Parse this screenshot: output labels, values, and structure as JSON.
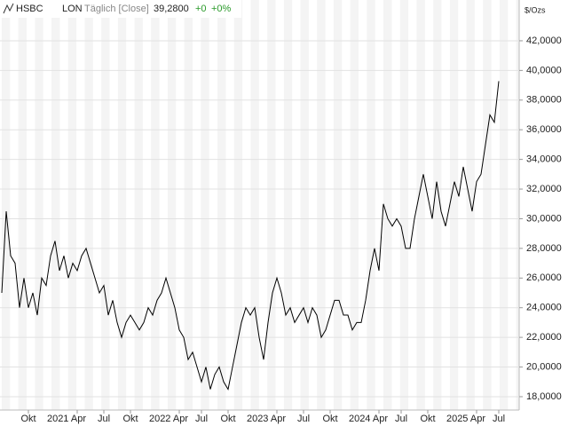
{
  "chart_data": {
    "type": "line",
    "symbol": "HSBC",
    "exchange": "LON",
    "interval": "Täglich [Close]",
    "last": "39,2800",
    "change": "+0",
    "change_pct": "+0%",
    "unit_label": "$/Ozs",
    "categories": [
      null,
      null,
      null,
      null,
      null,
      null,
      "Okt",
      null,
      null,
      null,
      null,
      null,
      null,
      null,
      null,
      null,
      null,
      "2021 Apr",
      null,
      null,
      null,
      null,
      null,
      "Jul",
      null,
      null,
      null,
      null,
      null,
      "Okt",
      null,
      null,
      null,
      null,
      null,
      null,
      null,
      null,
      null,
      null,
      "2022 Apr",
      null,
      null,
      null,
      null,
      "Jul",
      null,
      null,
      null,
      null,
      null,
      "Okt",
      null,
      null,
      null,
      null,
      null,
      null,
      null,
      null,
      null,
      null,
      "2023 Apr",
      null,
      null,
      null,
      null,
      null,
      "Jul",
      null,
      null,
      null,
      null,
      null,
      "Okt",
      null,
      null,
      null,
      null,
      null,
      null,
      null,
      null,
      null,
      null,
      "2024 Apr",
      null,
      null,
      null,
      null,
      "Jul",
      null,
      null,
      null,
      null,
      null,
      "Okt",
      null,
      null,
      null,
      null,
      null,
      null,
      null,
      null,
      null,
      null,
      "2025 Apr",
      null,
      null,
      null,
      null,
      "Jul"
    ],
    "values": [
      25,
      30.5,
      27.5,
      27,
      24,
      26,
      24,
      25,
      23.5,
      26,
      25.5,
      27.5,
      28.5,
      26.5,
      27.5,
      26,
      27,
      26.5,
      27.5,
      28,
      27,
      26,
      25,
      25.5,
      23.5,
      24.5,
      23,
      22,
      23,
      23.5,
      23,
      22.5,
      23,
      24,
      23.5,
      24.5,
      25,
      26,
      25,
      24,
      22.5,
      22,
      20.5,
      21,
      20,
      19,
      20,
      18.5,
      19.5,
      20,
      19,
      18.5,
      20,
      21.5,
      23,
      24,
      23.5,
      24,
      22,
      20.5,
      23,
      25,
      26,
      25,
      23.5,
      24,
      23,
      23.5,
      24,
      23,
      24,
      23.5,
      22,
      22.5,
      23.5,
      24.5,
      24.5,
      23.5,
      23.5,
      22.5,
      23,
      23,
      24.5,
      26.5,
      28,
      26.5,
      31,
      30,
      29.5,
      30,
      29.5,
      28,
      28,
      30,
      31.5,
      33,
      31.5,
      30,
      32.5,
      30.5,
      29.5,
      31,
      32.5,
      31.5,
      33.5,
      32,
      30.5,
      32.5,
      33,
      35,
      37,
      36.5,
      39.28
    ],
    "color": "#000000",
    "ylim": [
      17.1,
      44.75
    ],
    "yticks": [
      {
        "value": 18,
        "label": "18,0000"
      },
      {
        "value": 20,
        "label": "20,0000"
      },
      {
        "value": 22,
        "label": "22,0000"
      },
      {
        "value": 24,
        "label": "24,0000"
      },
      {
        "value": 26,
        "label": "26,0000"
      },
      {
        "value": 28,
        "label": "28,0000"
      },
      {
        "value": 30,
        "label": "30,0000"
      },
      {
        "value": 32,
        "label": "32,0000"
      },
      {
        "value": 34,
        "label": "34,0000"
      },
      {
        "value": 36,
        "label": "36,0000"
      },
      {
        "value": 38,
        "label": "38,0000"
      },
      {
        "value": 40,
        "label": "40,0000"
      },
      {
        "value": 42,
        "label": "42,0000"
      }
    ],
    "grid": true
  }
}
